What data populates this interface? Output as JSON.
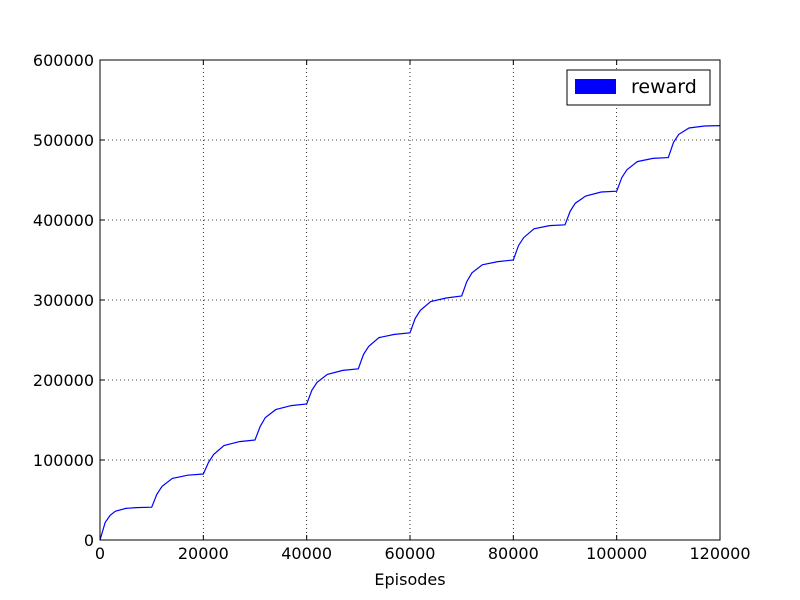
{
  "chart_data": {
    "type": "line",
    "title": "",
    "xlabel": "Episodes",
    "ylabel": "",
    "xlim": [
      0,
      120000
    ],
    "ylim": [
      0,
      600000
    ],
    "x_ticks": [
      0,
      20000,
      40000,
      60000,
      80000,
      100000,
      120000
    ],
    "y_ticks": [
      0,
      100000,
      200000,
      300000,
      400000,
      500000,
      600000
    ],
    "x_tick_labels": [
      "0",
      "20000",
      "40000",
      "60000",
      "80000",
      "100000",
      "120000"
    ],
    "y_tick_labels": [
      "0",
      "100000",
      "200000",
      "300000",
      "400000",
      "500000",
      "600000"
    ],
    "grid": true,
    "legend_position": "top-right",
    "series": [
      {
        "name": "reward",
        "color": "#0000ff",
        "x": [
          0,
          1000,
          2000,
          3000,
          5000,
          7000,
          10000,
          11000,
          12000,
          14000,
          17000,
          20000,
          21000,
          22000,
          24000,
          27000,
          30000,
          31000,
          32000,
          34000,
          37000,
          40000,
          41000,
          42000,
          44000,
          47000,
          50000,
          51000,
          52000,
          54000,
          57000,
          60000,
          61000,
          62000,
          64000,
          67000,
          70000,
          71000,
          72000,
          74000,
          77000,
          80000,
          81000,
          82000,
          84000,
          87000,
          90000,
          91000,
          92000,
          94000,
          97000,
          100000,
          101000,
          102000,
          104000,
          107000,
          110000,
          111000,
          112000,
          114000,
          117000,
          120000
        ],
        "values": [
          0,
          22000,
          31000,
          36000,
          39500,
          40500,
          41000,
          57000,
          67000,
          77000,
          81000,
          82500,
          97000,
          107000,
          118000,
          123000,
          125000,
          142000,
          153000,
          163000,
          168000,
          170000,
          187000,
          197000,
          207000,
          212000,
          214000,
          232000,
          242000,
          253000,
          257000,
          259000,
          277000,
          287000,
          298000,
          302500,
          305000,
          323000,
          334000,
          344000,
          348000,
          350000,
          368000,
          378000,
          389000,
          393000,
          394000,
          411000,
          421000,
          430000,
          435000,
          436000,
          453000,
          463000,
          473000,
          477000,
          478000,
          497000,
          507000,
          515000,
          517500,
          518000
        ]
      }
    ]
  }
}
